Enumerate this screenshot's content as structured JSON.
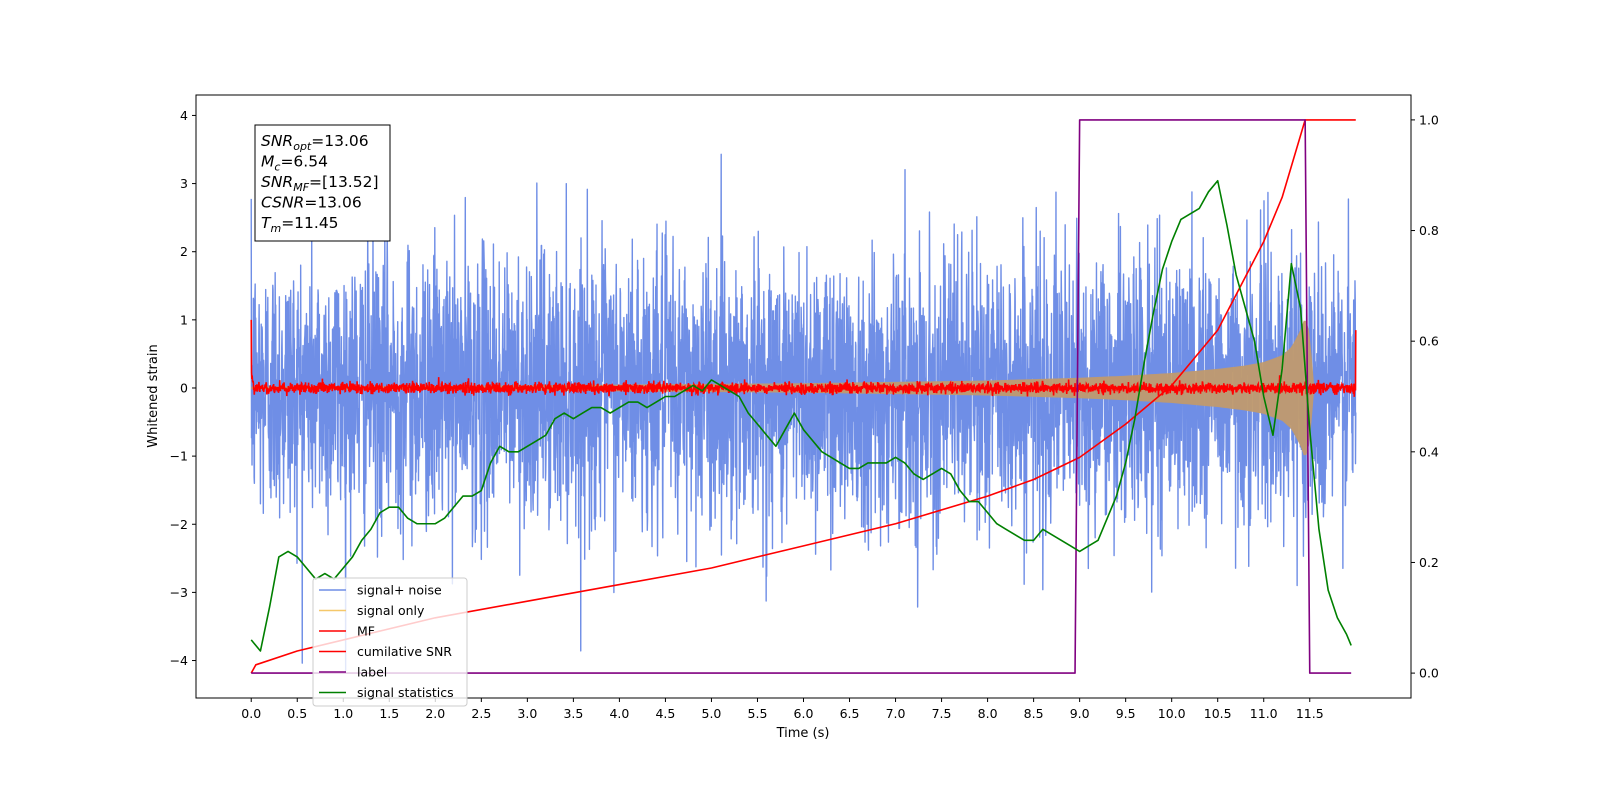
{
  "chart_data": {
    "type": "line",
    "xlabel": "Time (s)",
    "ylabel": "Whitened strain",
    "xlim": [
      -0.6,
      12.6
    ],
    "ylim": [
      -4.55,
      4.3
    ],
    "ylim_right": [
      -0.045,
      1.045
    ],
    "x_ticks": [
      0.0,
      0.5,
      1.0,
      1.5,
      2.0,
      2.5,
      3.0,
      3.5,
      4.0,
      4.5,
      5.0,
      5.5,
      6.0,
      6.5,
      7.0,
      7.5,
      8.0,
      8.5,
      9.0,
      9.5,
      10.0,
      10.5,
      11.0,
      11.5
    ],
    "x_tick_labels": [
      "0.0",
      "0.5",
      "1.0",
      "1.5",
      "2.0",
      "2.5",
      "3.0",
      "3.5",
      "4.0",
      "4.5",
      "5.0",
      "5.5",
      "6.0",
      "6.5",
      "7.0",
      "7.5",
      "8.0",
      "8.5",
      "9.0",
      "9.5",
      "10.0",
      "10.5",
      "11.0",
      "11.5"
    ],
    "y_ticks": [
      -4,
      -3,
      -2,
      -1,
      0,
      1,
      2,
      3,
      4
    ],
    "y_tick_labels": [
      "−4",
      "−3",
      "−2",
      "−1",
      "0",
      "1",
      "2",
      "3",
      "4"
    ],
    "y2_ticks": [
      0.0,
      0.2,
      0.4,
      0.6,
      0.8,
      1.0
    ],
    "y2_tick_labels": [
      "0.0",
      "0.2",
      "0.4",
      "0.6",
      "0.8",
      "1.0"
    ],
    "grid": false,
    "legend_position": "lower-left",
    "annotation": {
      "lines": [
        {
          "base": "SNR",
          "sub": "opt",
          "value": "=13.06"
        },
        {
          "base": "M",
          "sub": "c",
          "value": "=6.54"
        },
        {
          "base": "SNR",
          "sub": "MF",
          "value": "=[13.52]"
        },
        {
          "base": "CSNR",
          "sub": "",
          "value": "=13.06"
        },
        {
          "base": "T",
          "sub": "m",
          "value": "=11.45"
        }
      ]
    },
    "series": [
      {
        "name": "signal+ noise",
        "axis": "left",
        "color": "#6f8ee6",
        "x_range": [
          0.0,
          12.0
        ],
        "noise_sigma": 1.0,
        "min": -4.15,
        "max": 3.9
      },
      {
        "name": "signal only",
        "axis": "left",
        "color": "#f5c86a",
        "envelope": {
          "x": [
            0.0,
            2.0,
            4.0,
            6.0,
            7.0,
            8.0,
            8.5,
            9.0,
            9.5,
            10.0,
            10.5,
            10.8,
            11.0,
            11.2,
            11.3,
            11.4,
            11.45,
            11.5,
            11.55
          ],
          "amp": [
            0.02,
            0.03,
            0.05,
            0.07,
            0.09,
            0.11,
            0.13,
            0.15,
            0.18,
            0.22,
            0.28,
            0.33,
            0.38,
            0.48,
            0.6,
            0.85,
            1.05,
            0.8,
            0.0
          ]
        }
      },
      {
        "name": "MF",
        "axis": "left",
        "color": "#ff0000",
        "x_range": [
          0.0,
          12.0
        ],
        "noise_amplitude": 0.07,
        "edges": {
          "start": 1.0,
          "end": 0.85
        }
      },
      {
        "name": "cumilative SNR",
        "axis": "right",
        "color": "#ff0000",
        "x": [
          0.0,
          0.05,
          0.5,
          1.0,
          2.0,
          3.0,
          4.0,
          5.0,
          6.0,
          7.0,
          8.0,
          8.5,
          9.0,
          9.5,
          10.0,
          10.5,
          11.0,
          11.2,
          11.45,
          12.0
        ],
        "values": [
          0.0,
          0.015,
          0.04,
          0.06,
          0.1,
          0.13,
          0.16,
          0.19,
          0.23,
          0.27,
          0.32,
          0.35,
          0.39,
          0.45,
          0.52,
          0.62,
          0.78,
          0.86,
          1.0,
          1.0
        ]
      },
      {
        "name": "label",
        "axis": "right",
        "color": "#800080",
        "x": [
          0.0,
          8.95,
          9.0,
          11.45,
          11.5,
          11.95
        ],
        "values": [
          0.0,
          0.0,
          1.0,
          1.0,
          0.0,
          0.0
        ]
      },
      {
        "name": "signal statistics",
        "axis": "right",
        "color": "#008000",
        "x": [
          0.0,
          0.1,
          0.2,
          0.3,
          0.4,
          0.5,
          0.6,
          0.7,
          0.8,
          0.9,
          1.0,
          1.1,
          1.2,
          1.3,
          1.4,
          1.5,
          1.6,
          1.7,
          1.8,
          1.9,
          2.0,
          2.1,
          2.2,
          2.3,
          2.4,
          2.5,
          2.6,
          2.7,
          2.8,
          2.9,
          3.0,
          3.1,
          3.2,
          3.3,
          3.4,
          3.5,
          3.6,
          3.7,
          3.8,
          3.9,
          4.0,
          4.1,
          4.2,
          4.3,
          4.4,
          4.5,
          4.6,
          4.7,
          4.8,
          4.9,
          5.0,
          5.1,
          5.2,
          5.3,
          5.4,
          5.5,
          5.6,
          5.7,
          5.8,
          5.9,
          6.0,
          6.1,
          6.2,
          6.3,
          6.4,
          6.5,
          6.6,
          6.7,
          6.8,
          6.9,
          7.0,
          7.1,
          7.2,
          7.3,
          7.4,
          7.5,
          7.6,
          7.7,
          7.8,
          7.9,
          8.0,
          8.1,
          8.2,
          8.3,
          8.4,
          8.5,
          8.6,
          8.7,
          8.8,
          8.9,
          9.0,
          9.1,
          9.2,
          9.3,
          9.4,
          9.5,
          9.6,
          9.7,
          9.8,
          9.9,
          10.0,
          10.1,
          10.2,
          10.3,
          10.4,
          10.5,
          10.6,
          10.7,
          10.8,
          10.9,
          11.0,
          11.1,
          11.2,
          11.3,
          11.4,
          11.5,
          11.6,
          11.7,
          11.8,
          11.9,
          11.95
        ],
        "values": [
          0.06,
          0.04,
          0.12,
          0.21,
          0.22,
          0.21,
          0.19,
          0.17,
          0.18,
          0.17,
          0.19,
          0.21,
          0.24,
          0.26,
          0.29,
          0.3,
          0.3,
          0.28,
          0.27,
          0.27,
          0.27,
          0.28,
          0.3,
          0.32,
          0.32,
          0.33,
          0.38,
          0.41,
          0.4,
          0.4,
          0.41,
          0.42,
          0.43,
          0.46,
          0.47,
          0.46,
          0.47,
          0.48,
          0.48,
          0.47,
          0.48,
          0.49,
          0.49,
          0.48,
          0.49,
          0.5,
          0.5,
          0.51,
          0.52,
          0.51,
          0.53,
          0.52,
          0.51,
          0.5,
          0.47,
          0.45,
          0.43,
          0.41,
          0.44,
          0.47,
          0.44,
          0.42,
          0.4,
          0.39,
          0.38,
          0.37,
          0.37,
          0.38,
          0.38,
          0.38,
          0.39,
          0.38,
          0.36,
          0.35,
          0.36,
          0.37,
          0.36,
          0.33,
          0.31,
          0.31,
          0.29,
          0.27,
          0.26,
          0.25,
          0.24,
          0.24,
          0.26,
          0.25,
          0.24,
          0.23,
          0.22,
          0.23,
          0.24,
          0.28,
          0.32,
          0.38,
          0.46,
          0.56,
          0.65,
          0.73,
          0.78,
          0.82,
          0.83,
          0.84,
          0.87,
          0.89,
          0.81,
          0.72,
          0.66,
          0.6,
          0.5,
          0.43,
          0.55,
          0.74,
          0.66,
          0.44,
          0.26,
          0.15,
          0.1,
          0.07,
          0.05
        ]
      }
    ]
  }
}
